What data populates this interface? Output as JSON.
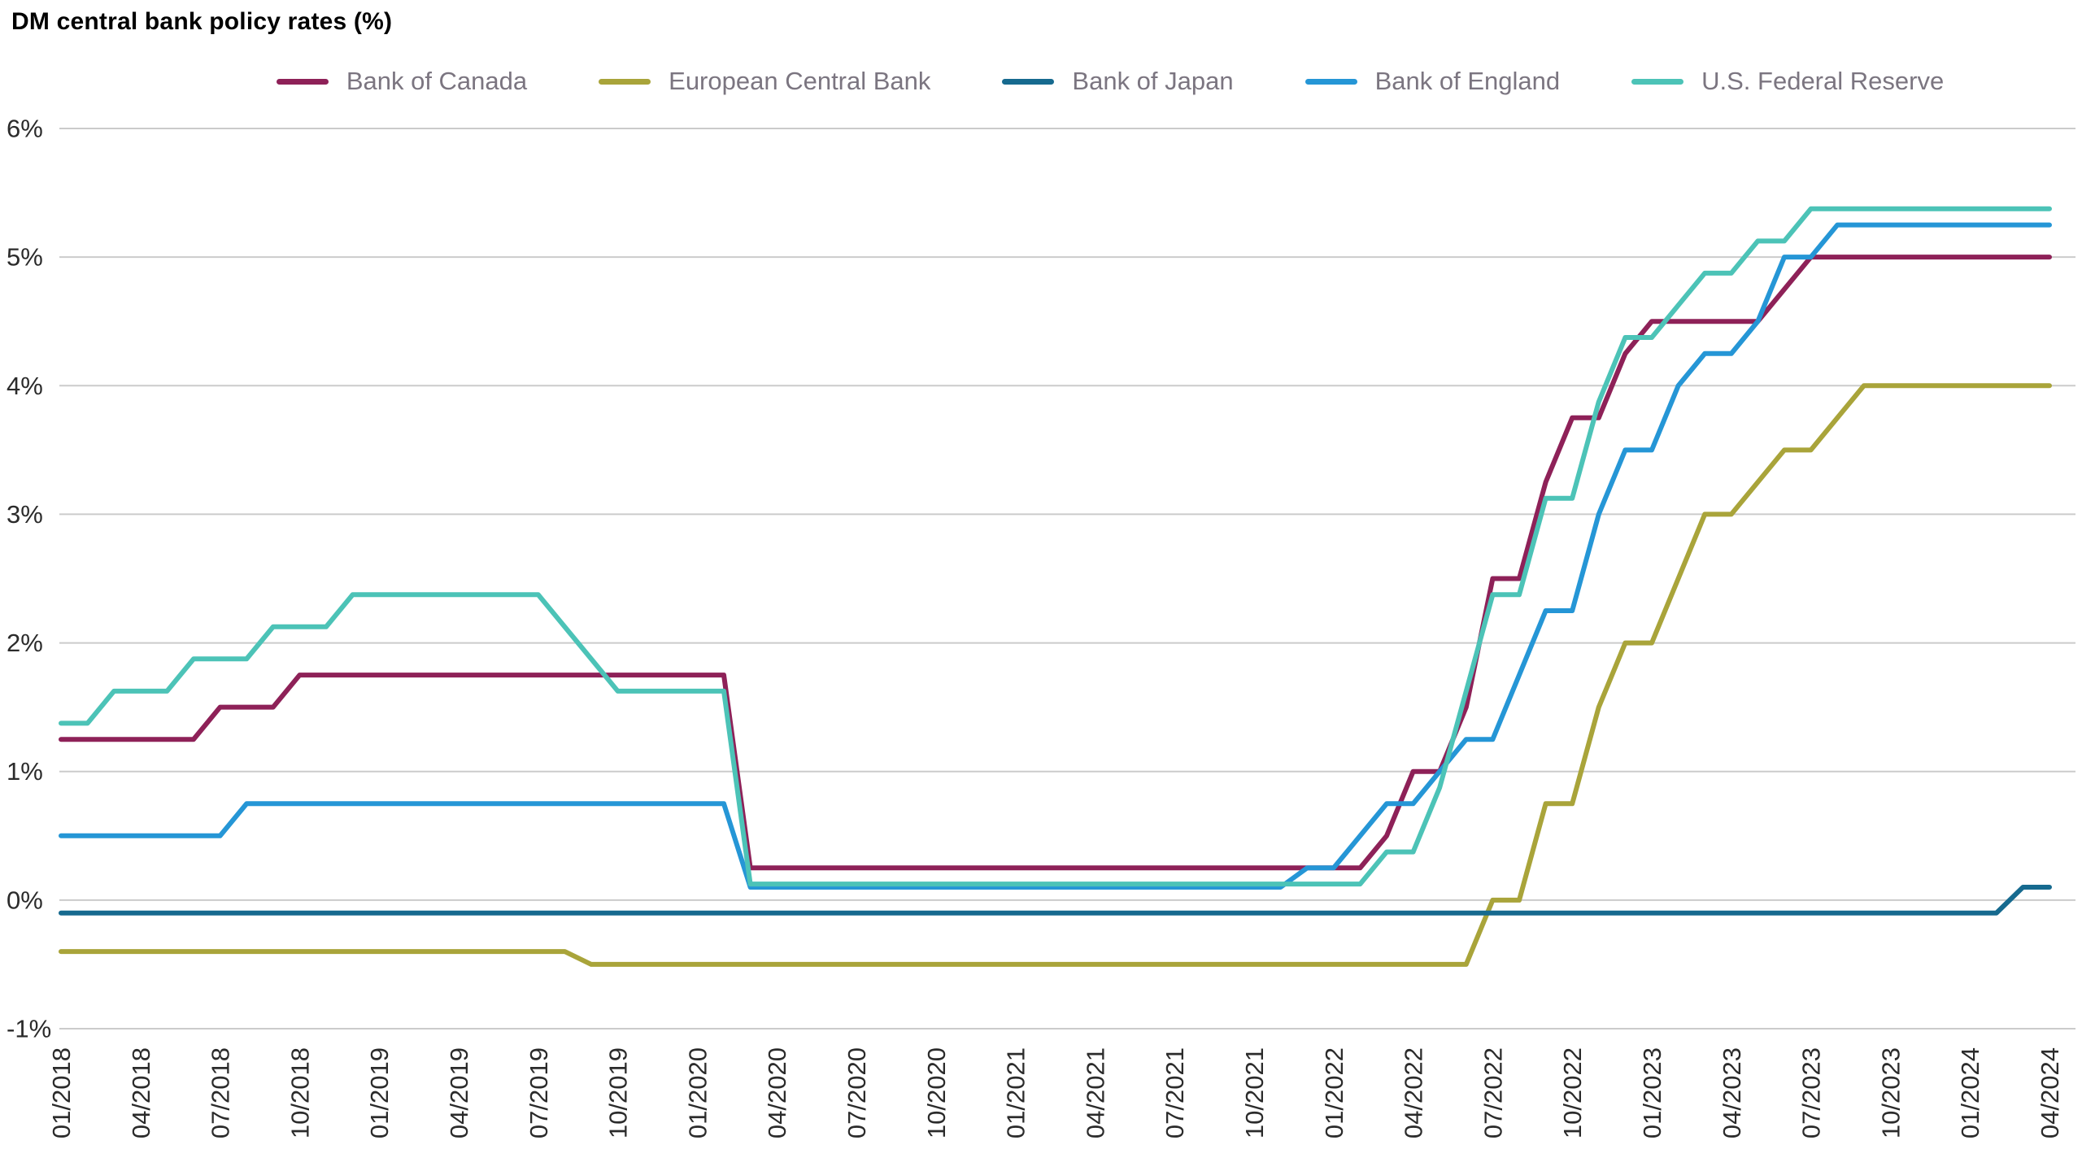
{
  "chart_data": {
    "type": "line",
    "title": "DM central bank policy rates (%)",
    "xlabel": "",
    "ylabel": "",
    "ylim": [
      -1,
      6
    ],
    "y_ticks": [
      "-1%",
      "0%",
      "1%",
      "2%",
      "3%",
      "4%",
      "5%",
      "6%"
    ],
    "grid": true,
    "grid_color": "#cbcbcb",
    "legend_position": "top",
    "x_tick_every": 3,
    "x": [
      "01/2018",
      "02/2018",
      "03/2018",
      "04/2018",
      "05/2018",
      "06/2018",
      "07/2018",
      "08/2018",
      "09/2018",
      "10/2018",
      "11/2018",
      "12/2018",
      "01/2019",
      "02/2019",
      "03/2019",
      "04/2019",
      "05/2019",
      "06/2019",
      "07/2019",
      "08/2019",
      "09/2019",
      "10/2019",
      "11/2019",
      "12/2019",
      "01/2020",
      "02/2020",
      "03/2020",
      "04/2020",
      "05/2020",
      "06/2020",
      "07/2020",
      "08/2020",
      "09/2020",
      "10/2020",
      "11/2020",
      "12/2020",
      "01/2021",
      "02/2021",
      "03/2021",
      "04/2021",
      "05/2021",
      "06/2021",
      "07/2021",
      "08/2021",
      "09/2021",
      "10/2021",
      "11/2021",
      "12/2021",
      "01/2022",
      "02/2022",
      "03/2022",
      "04/2022",
      "05/2022",
      "06/2022",
      "07/2022",
      "08/2022",
      "09/2022",
      "10/2022",
      "11/2022",
      "12/2022",
      "01/2023",
      "02/2023",
      "03/2023",
      "04/2023",
      "05/2023",
      "06/2023",
      "07/2023",
      "08/2023",
      "09/2023",
      "10/2023",
      "11/2023",
      "12/2023",
      "01/2024",
      "02/2024",
      "03/2024",
      "04/2024"
    ],
    "series": [
      {
        "name": "Bank of Canada",
        "color": "#8e2158",
        "values": [
          1.25,
          1.25,
          1.25,
          1.25,
          1.25,
          1.25,
          1.5,
          1.5,
          1.5,
          1.75,
          1.75,
          1.75,
          1.75,
          1.75,
          1.75,
          1.75,
          1.75,
          1.75,
          1.75,
          1.75,
          1.75,
          1.75,
          1.75,
          1.75,
          1.75,
          1.75,
          0.25,
          0.25,
          0.25,
          0.25,
          0.25,
          0.25,
          0.25,
          0.25,
          0.25,
          0.25,
          0.25,
          0.25,
          0.25,
          0.25,
          0.25,
          0.25,
          0.25,
          0.25,
          0.25,
          0.25,
          0.25,
          0.25,
          0.25,
          0.25,
          0.5,
          1.0,
          1.0,
          1.5,
          2.5,
          2.5,
          3.25,
          3.75,
          3.75,
          4.25,
          4.5,
          4.5,
          4.5,
          4.5,
          4.5,
          4.75,
          5.0,
          5.0,
          5.0,
          5.0,
          5.0,
          5.0,
          5.0,
          5.0,
          5.0,
          5.0
        ]
      },
      {
        "name": "European Central Bank",
        "color": "#a9a43a",
        "values": [
          -0.4,
          -0.4,
          -0.4,
          -0.4,
          -0.4,
          -0.4,
          -0.4,
          -0.4,
          -0.4,
          -0.4,
          -0.4,
          -0.4,
          -0.4,
          -0.4,
          -0.4,
          -0.4,
          -0.4,
          -0.4,
          -0.4,
          -0.4,
          -0.5,
          -0.5,
          -0.5,
          -0.5,
          -0.5,
          -0.5,
          -0.5,
          -0.5,
          -0.5,
          -0.5,
          -0.5,
          -0.5,
          -0.5,
          -0.5,
          -0.5,
          -0.5,
          -0.5,
          -0.5,
          -0.5,
          -0.5,
          -0.5,
          -0.5,
          -0.5,
          -0.5,
          -0.5,
          -0.5,
          -0.5,
          -0.5,
          -0.5,
          -0.5,
          -0.5,
          -0.5,
          -0.5,
          -0.5,
          0.0,
          0.0,
          0.75,
          0.75,
          1.5,
          2.0,
          2.0,
          2.5,
          3.0,
          3.0,
          3.25,
          3.5,
          3.5,
          3.75,
          4.0,
          4.0,
          4.0,
          4.0,
          4.0,
          4.0,
          4.0,
          4.0
        ]
      },
      {
        "name": "Bank of Japan",
        "color": "#166a8f",
        "values": [
          -0.1,
          -0.1,
          -0.1,
          -0.1,
          -0.1,
          -0.1,
          -0.1,
          -0.1,
          -0.1,
          -0.1,
          -0.1,
          -0.1,
          -0.1,
          -0.1,
          -0.1,
          -0.1,
          -0.1,
          -0.1,
          -0.1,
          -0.1,
          -0.1,
          -0.1,
          -0.1,
          -0.1,
          -0.1,
          -0.1,
          -0.1,
          -0.1,
          -0.1,
          -0.1,
          -0.1,
          -0.1,
          -0.1,
          -0.1,
          -0.1,
          -0.1,
          -0.1,
          -0.1,
          -0.1,
          -0.1,
          -0.1,
          -0.1,
          -0.1,
          -0.1,
          -0.1,
          -0.1,
          -0.1,
          -0.1,
          -0.1,
          -0.1,
          -0.1,
          -0.1,
          -0.1,
          -0.1,
          -0.1,
          -0.1,
          -0.1,
          -0.1,
          -0.1,
          -0.1,
          -0.1,
          -0.1,
          -0.1,
          -0.1,
          -0.1,
          -0.1,
          -0.1,
          -0.1,
          -0.1,
          -0.1,
          -0.1,
          -0.1,
          -0.1,
          -0.1,
          0.1,
          0.1
        ]
      },
      {
        "name": "Bank of England",
        "color": "#2596d6",
        "values": [
          0.5,
          0.5,
          0.5,
          0.5,
          0.5,
          0.5,
          0.5,
          0.75,
          0.75,
          0.75,
          0.75,
          0.75,
          0.75,
          0.75,
          0.75,
          0.75,
          0.75,
          0.75,
          0.75,
          0.75,
          0.75,
          0.75,
          0.75,
          0.75,
          0.75,
          0.75,
          0.1,
          0.1,
          0.1,
          0.1,
          0.1,
          0.1,
          0.1,
          0.1,
          0.1,
          0.1,
          0.1,
          0.1,
          0.1,
          0.1,
          0.1,
          0.1,
          0.1,
          0.1,
          0.1,
          0.1,
          0.1,
          0.25,
          0.25,
          0.5,
          0.75,
          0.75,
          1.0,
          1.25,
          1.25,
          1.75,
          2.25,
          2.25,
          3.0,
          3.5,
          3.5,
          4.0,
          4.25,
          4.25,
          4.5,
          5.0,
          5.0,
          5.25,
          5.25,
          5.25,
          5.25,
          5.25,
          5.25,
          5.25,
          5.25,
          5.25
        ]
      },
      {
        "name": "U.S. Federal Reserve",
        "color": "#4cc3b7",
        "values": [
          1.375,
          1.375,
          1.625,
          1.625,
          1.625,
          1.875,
          1.875,
          1.875,
          2.125,
          2.125,
          2.125,
          2.375,
          2.375,
          2.375,
          2.375,
          2.375,
          2.375,
          2.375,
          2.375,
          2.125,
          1.875,
          1.625,
          1.625,
          1.625,
          1.625,
          1.625,
          0.125,
          0.125,
          0.125,
          0.125,
          0.125,
          0.125,
          0.125,
          0.125,
          0.125,
          0.125,
          0.125,
          0.125,
          0.125,
          0.125,
          0.125,
          0.125,
          0.125,
          0.125,
          0.125,
          0.125,
          0.125,
          0.125,
          0.125,
          0.125,
          0.375,
          0.375,
          0.875,
          1.625,
          2.375,
          2.375,
          3.125,
          3.125,
          3.875,
          4.375,
          4.375,
          4.625,
          4.875,
          4.875,
          5.125,
          5.125,
          5.375,
          5.375,
          5.375,
          5.375,
          5.375,
          5.375,
          5.375,
          5.375,
          5.375,
          5.375
        ]
      }
    ]
  }
}
